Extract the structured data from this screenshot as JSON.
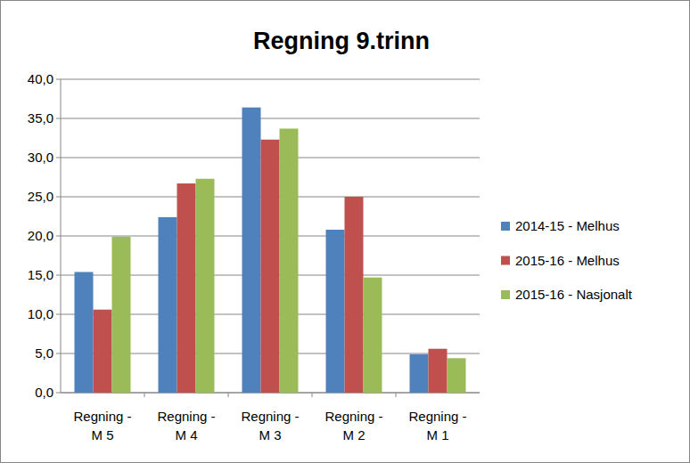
{
  "chart_data": {
    "type": "bar",
    "title": "Regning 9.trinn",
    "categories": [
      "Regning - M 5",
      "Regning - M 4",
      "Regning - M 3",
      "Regning - M 2",
      "Regning - M 1"
    ],
    "series": [
      {
        "name": "2014-15 - Melhus",
        "color": "#4f81bd",
        "values": [
          15.4,
          22.4,
          36.4,
          20.8,
          4.9
        ]
      },
      {
        "name": "2015-16 - Melhus",
        "color": "#c0504d",
        "values": [
          10.6,
          26.7,
          32.3,
          25.0,
          5.6
        ]
      },
      {
        "name": "2015-16 - Nasjonalt",
        "color": "#9bbb59",
        "values": [
          19.9,
          27.3,
          33.7,
          14.7,
          4.4
        ]
      }
    ],
    "ylim": [
      0,
      40
    ],
    "yticks": [
      {
        "value": 0,
        "label": "0,0"
      },
      {
        "value": 5,
        "label": "5,0"
      },
      {
        "value": 10,
        "label": "10,0"
      },
      {
        "value": 15,
        "label": "15,0"
      },
      {
        "value": 20,
        "label": "20,0"
      },
      {
        "value": 25,
        "label": "25,0"
      },
      {
        "value": 30,
        "label": "30,0"
      },
      {
        "value": 35,
        "label": "35,0"
      },
      {
        "value": 40,
        "label": "40,0"
      }
    ],
    "grid": true,
    "legend": "right"
  }
}
